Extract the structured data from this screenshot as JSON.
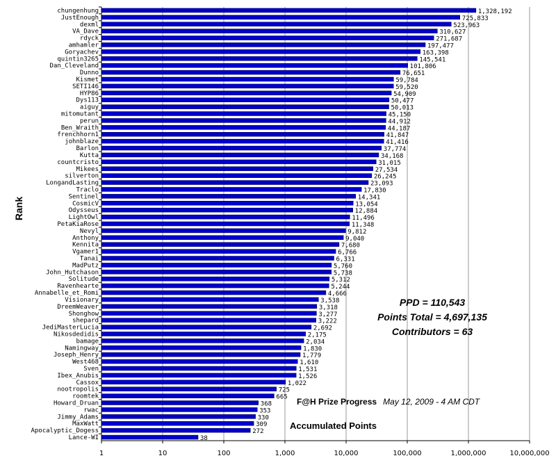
{
  "chart_data": {
    "type": "bar",
    "orientation": "horizontal",
    "xscale": "log",
    "xlim": [
      1,
      10000000
    ],
    "x_ticks": [
      "1",
      "10",
      "100",
      "1,000",
      "10,000",
      "100,000",
      "1,000,000",
      "10,000,000"
    ],
    "ylabel": "Rank",
    "xlabel": "Accumulated Points",
    "title": "F@H Prize Progress",
    "subtitle": "May 12, 2009 - 4 AM CDT",
    "annotations": [
      "PPD = 110,543",
      "Points Total = 4,697,135",
      "Contributors = 63"
    ],
    "grid": "vertical",
    "bar_color": "#0000cc",
    "categories": [
      "chungenhung",
      "JustEnough",
      "dexml",
      "VA_Dave",
      "rdyck",
      "amhamler",
      "Goryachev",
      "quintin3265",
      "Dan_Cleveland",
      "Dunno",
      "Kismet",
      "SETI146",
      "HYP86",
      "Dys113",
      "aiguy",
      "mitomutant",
      "perun",
      "Ben_Wraith",
      "frenchhorn1",
      "johnblaze",
      "Barlon",
      "Kutta",
      "countcristo",
      "Mikees",
      "silverton",
      "LongandLasting",
      "Traclo",
      "Sentinel",
      "CosmicV",
      "Odysseus",
      "LightOwl",
      "PetaKiaRose",
      "Nevyl",
      "Anthony",
      "Kennita",
      "Vgamer1",
      "Tanai",
      "MadPutz",
      "John_Hutchason",
      "Solitude",
      "Ravenhearte",
      "Annabelle_et_Romi",
      "Visionary",
      "DreemWeaver",
      "Shonghow",
      "shepard",
      "JediMasterLucia",
      "Nikosdedidis",
      "bamage",
      "Namingway",
      "Joseph_Henry",
      "West468",
      "Sven",
      "Ibex_Anubis",
      "Cassox",
      "nootropolis",
      "roomtek",
      "Howard_Druan",
      "rwac",
      "Jimmy_Adams",
      "MaxWatt",
      "Apocalyptic_Dogess",
      "Lance-WI"
    ],
    "values": [
      1328192,
      725833,
      523963,
      310627,
      271687,
      197477,
      163398,
      145541,
      101806,
      76651,
      59784,
      59520,
      54909,
      50477,
      50013,
      45150,
      44912,
      44187,
      41847,
      41416,
      37774,
      34168,
      31015,
      27534,
      26245,
      23093,
      17830,
      14341,
      13054,
      12884,
      11496,
      11348,
      9812,
      9040,
      7680,
      6766,
      6331,
      5760,
      5738,
      5312,
      5244,
      4666,
      3538,
      3318,
      3277,
      3222,
      2692,
      2175,
      2034,
      1830,
      1779,
      1610,
      1531,
      1526,
      1022,
      725,
      665,
      368,
      353,
      330,
      309,
      272,
      38
    ],
    "value_labels": [
      "1,328,192",
      "725,833",
      "523,963",
      "310,627",
      "271,687",
      "197,477",
      "163,398",
      "145,541",
      "101,806",
      "76,651",
      "59,784",
      "59,520",
      "54,909",
      "50,477",
      "50,013",
      "45,150",
      "44,912",
      "44,187",
      "41,847",
      "41,416",
      "37,774",
      "34,168",
      "31,015",
      "27,534",
      "26,245",
      "23,093",
      "17,830",
      "14,341",
      "13,054",
      "12,884",
      "11,496",
      "11,348",
      "9,812",
      "9,040",
      "7,680",
      "6,766",
      "6,331",
      "5,760",
      "5,738",
      "5,312",
      "5,244",
      "4,666",
      "3,538",
      "3,318",
      "3,277",
      "3,222",
      "2,692",
      "2,175",
      "2,034",
      "1,830",
      "1,779",
      "1,610",
      "1,531",
      "1,526",
      "1,022",
      "725",
      "665",
      "368",
      "353",
      "330",
      "309",
      "272",
      "38"
    ]
  }
}
